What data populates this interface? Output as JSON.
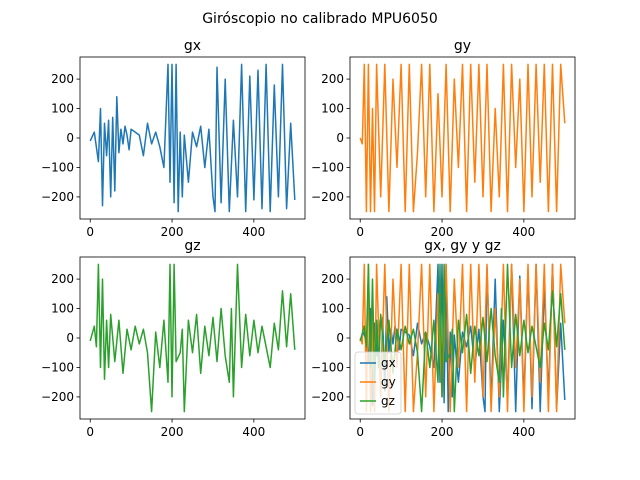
{
  "figure": {
    "title": "Giróscopio no calibrado MPU6050"
  },
  "colors": {
    "gx": "#1f77b4",
    "gy": "#ff7f0e",
    "gz": "#2ca02c",
    "axis": "#000000",
    "legend_border": "#cccccc"
  },
  "chart_data": [
    {
      "id": "gx",
      "type": "line",
      "title": "gx",
      "xlabel": "",
      "ylabel": "",
      "xlim": [
        -25,
        525
      ],
      "ylim": [
        -275,
        275
      ],
      "x_ticks": [
        0,
        200,
        400
      ],
      "y_ticks": [
        -200,
        -100,
        0,
        100,
        200
      ],
      "x_tick_labels": [
        "0",
        "200",
        "400"
      ],
      "y_tick_labels": [
        "−200",
        "−100",
        "0",
        "100",
        "200"
      ],
      "legend": null,
      "grid": false,
      "series": [
        {
          "key": "gx",
          "x": [
            0,
            10,
            20,
            25,
            30,
            35,
            40,
            45,
            50,
            55,
            60,
            65,
            70,
            75,
            80,
            85,
            90,
            95,
            100,
            110,
            120,
            130,
            140,
            150,
            160,
            170,
            180,
            190,
            195,
            200,
            205,
            210,
            215,
            220,
            225,
            230,
            240,
            250,
            260,
            270,
            280,
            290,
            300,
            305,
            310,
            320,
            330,
            340,
            350,
            360,
            370,
            380,
            390,
            400,
            410,
            420,
            430,
            440,
            450,
            460,
            470,
            480,
            490,
            500
          ],
          "y": [
            -10,
            20,
            -80,
            100,
            -230,
            50,
            -60,
            60,
            -200,
            70,
            -180,
            140,
            -50,
            30,
            -20,
            40,
            10,
            -40,
            30,
            20,
            10,
            -60,
            50,
            -20,
            20,
            -30,
            -100,
            250,
            -150,
            250,
            -220,
            250,
            -250,
            20,
            -200,
            10,
            -150,
            20,
            -30,
            40,
            -100,
            30,
            -200,
            -250,
            240,
            -220,
            200,
            -250,
            60,
            -200,
            250,
            -250,
            210,
            -210,
            230,
            -240,
            250,
            -250,
            180,
            -200,
            250,
            -240,
            50,
            -210
          ]
        }
      ]
    },
    {
      "id": "gy",
      "type": "line",
      "title": "gy",
      "xlabel": "",
      "ylabel": "",
      "xlim": [
        -25,
        525
      ],
      "ylim": [
        -275,
        275
      ],
      "x_ticks": [
        0,
        200,
        400
      ],
      "y_ticks": [
        -200,
        -100,
        0,
        100,
        200
      ],
      "x_tick_labels": [
        "0",
        "200",
        "400"
      ],
      "y_tick_labels": [
        "−200",
        "−100",
        "0",
        "100",
        "200"
      ],
      "legend": null,
      "grid": false,
      "series": [
        {
          "key": "gy",
          "x": [
            0,
            5,
            10,
            15,
            20,
            25,
            30,
            35,
            40,
            50,
            60,
            70,
            80,
            90,
            100,
            110,
            120,
            130,
            140,
            150,
            160,
            170,
            180,
            190,
            200,
            210,
            220,
            230,
            240,
            250,
            260,
            270,
            280,
            290,
            300,
            310,
            320,
            330,
            340,
            350,
            360,
            370,
            380,
            390,
            400,
            410,
            420,
            430,
            440,
            450,
            460,
            470,
            480,
            490,
            500
          ],
          "y": [
            0,
            -20,
            250,
            -250,
            250,
            -250,
            100,
            -250,
            250,
            -200,
            250,
            -250,
            200,
            -100,
            250,
            -250,
            250,
            -250,
            -50,
            250,
            -200,
            250,
            -250,
            150,
            -200,
            250,
            -250,
            200,
            -100,
            250,
            -250,
            250,
            -150,
            250,
            -200,
            250,
            -250,
            100,
            -200,
            250,
            -250,
            250,
            -100,
            200,
            -250,
            250,
            -200,
            250,
            -150,
            250,
            -250,
            250,
            -250,
            250,
            50
          ]
        }
      ]
    },
    {
      "id": "gz",
      "type": "line",
      "title": "gz",
      "xlabel": "",
      "ylabel": "",
      "xlim": [
        -25,
        525
      ],
      "ylim": [
        -275,
        275
      ],
      "x_ticks": [
        0,
        200,
        400
      ],
      "y_ticks": [
        -200,
        -100,
        0,
        100,
        200
      ],
      "x_tick_labels": [
        "0",
        "200",
        "400"
      ],
      "y_tick_labels": [
        "−200",
        "−100",
        "0",
        "100",
        "200"
      ],
      "legend": null,
      "grid": false,
      "series": [
        {
          "key": "gz",
          "x": [
            0,
            10,
            15,
            20,
            25,
            30,
            35,
            40,
            45,
            50,
            60,
            70,
            80,
            90,
            100,
            110,
            120,
            130,
            140,
            150,
            160,
            170,
            180,
            190,
            195,
            200,
            205,
            210,
            220,
            225,
            230,
            240,
            250,
            260,
            270,
            280,
            290,
            300,
            310,
            320,
            330,
            340,
            345,
            350,
            360,
            370,
            380,
            390,
            400,
            410,
            420,
            430,
            440,
            450,
            460,
            470,
            480,
            490,
            500
          ],
          "y": [
            -10,
            40,
            -30,
            250,
            -100,
            200,
            -140,
            60,
            -100,
            80,
            -80,
            60,
            -120,
            30,
            -40,
            40,
            -20,
            30,
            -50,
            -250,
            20,
            -100,
            60,
            -150,
            250,
            -200,
            250,
            -80,
            -50,
            30,
            -250,
            60,
            -50,
            80,
            -120,
            40,
            -60,
            70,
            -80,
            100,
            -60,
            -150,
            100,
            -200,
            250,
            -100,
            80,
            -60,
            60,
            -50,
            40,
            -30,
            -100,
            50,
            -40,
            160,
            -30,
            150,
            -40
          ]
        }
      ]
    },
    {
      "id": "combined",
      "type": "line",
      "title": "gx, gy y gz",
      "xlabel": "",
      "ylabel": "",
      "xlim": [
        -25,
        525
      ],
      "ylim": [
        -275,
        275
      ],
      "x_ticks": [
        0,
        200,
        400
      ],
      "y_ticks": [
        -200,
        -100,
        0,
        100,
        200
      ],
      "x_tick_labels": [
        "0",
        "200",
        "400"
      ],
      "y_tick_labels": [
        "−200",
        "−100",
        "0",
        "100",
        "200"
      ],
      "legend": "lower-left",
      "grid": false,
      "series": [
        {
          "name": "gx",
          "ref": "gx"
        },
        {
          "name": "gy",
          "ref": "gy"
        },
        {
          "name": "gz",
          "ref": "gz"
        }
      ]
    }
  ]
}
